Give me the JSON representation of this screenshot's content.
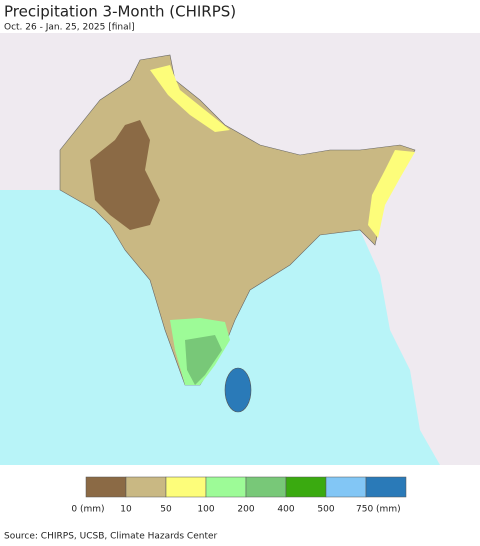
{
  "title": "Precipitation 3-Month (CHIRPS)",
  "subtitle": "Oct. 26 - Jan. 25, 2025 [final]",
  "legend": {
    "items": [
      {
        "color": "#8b6a45",
        "label": "0 (mm)"
      },
      {
        "color": "#c9b883",
        "label": "10"
      },
      {
        "color": "#fdfd7a",
        "label": "50"
      },
      {
        "color": "#9dfb97",
        "label": "100"
      },
      {
        "color": "#78c878",
        "label": "200"
      },
      {
        "color": "#3aaa10",
        "label": "400"
      },
      {
        "color": "#82c6f5",
        "label": "500"
      },
      {
        "color": "#2a7ab8",
        "label": "750 (mm)"
      }
    ]
  },
  "source": "Source: CHIRPS, UCSB, Climate Hazards Center"
}
